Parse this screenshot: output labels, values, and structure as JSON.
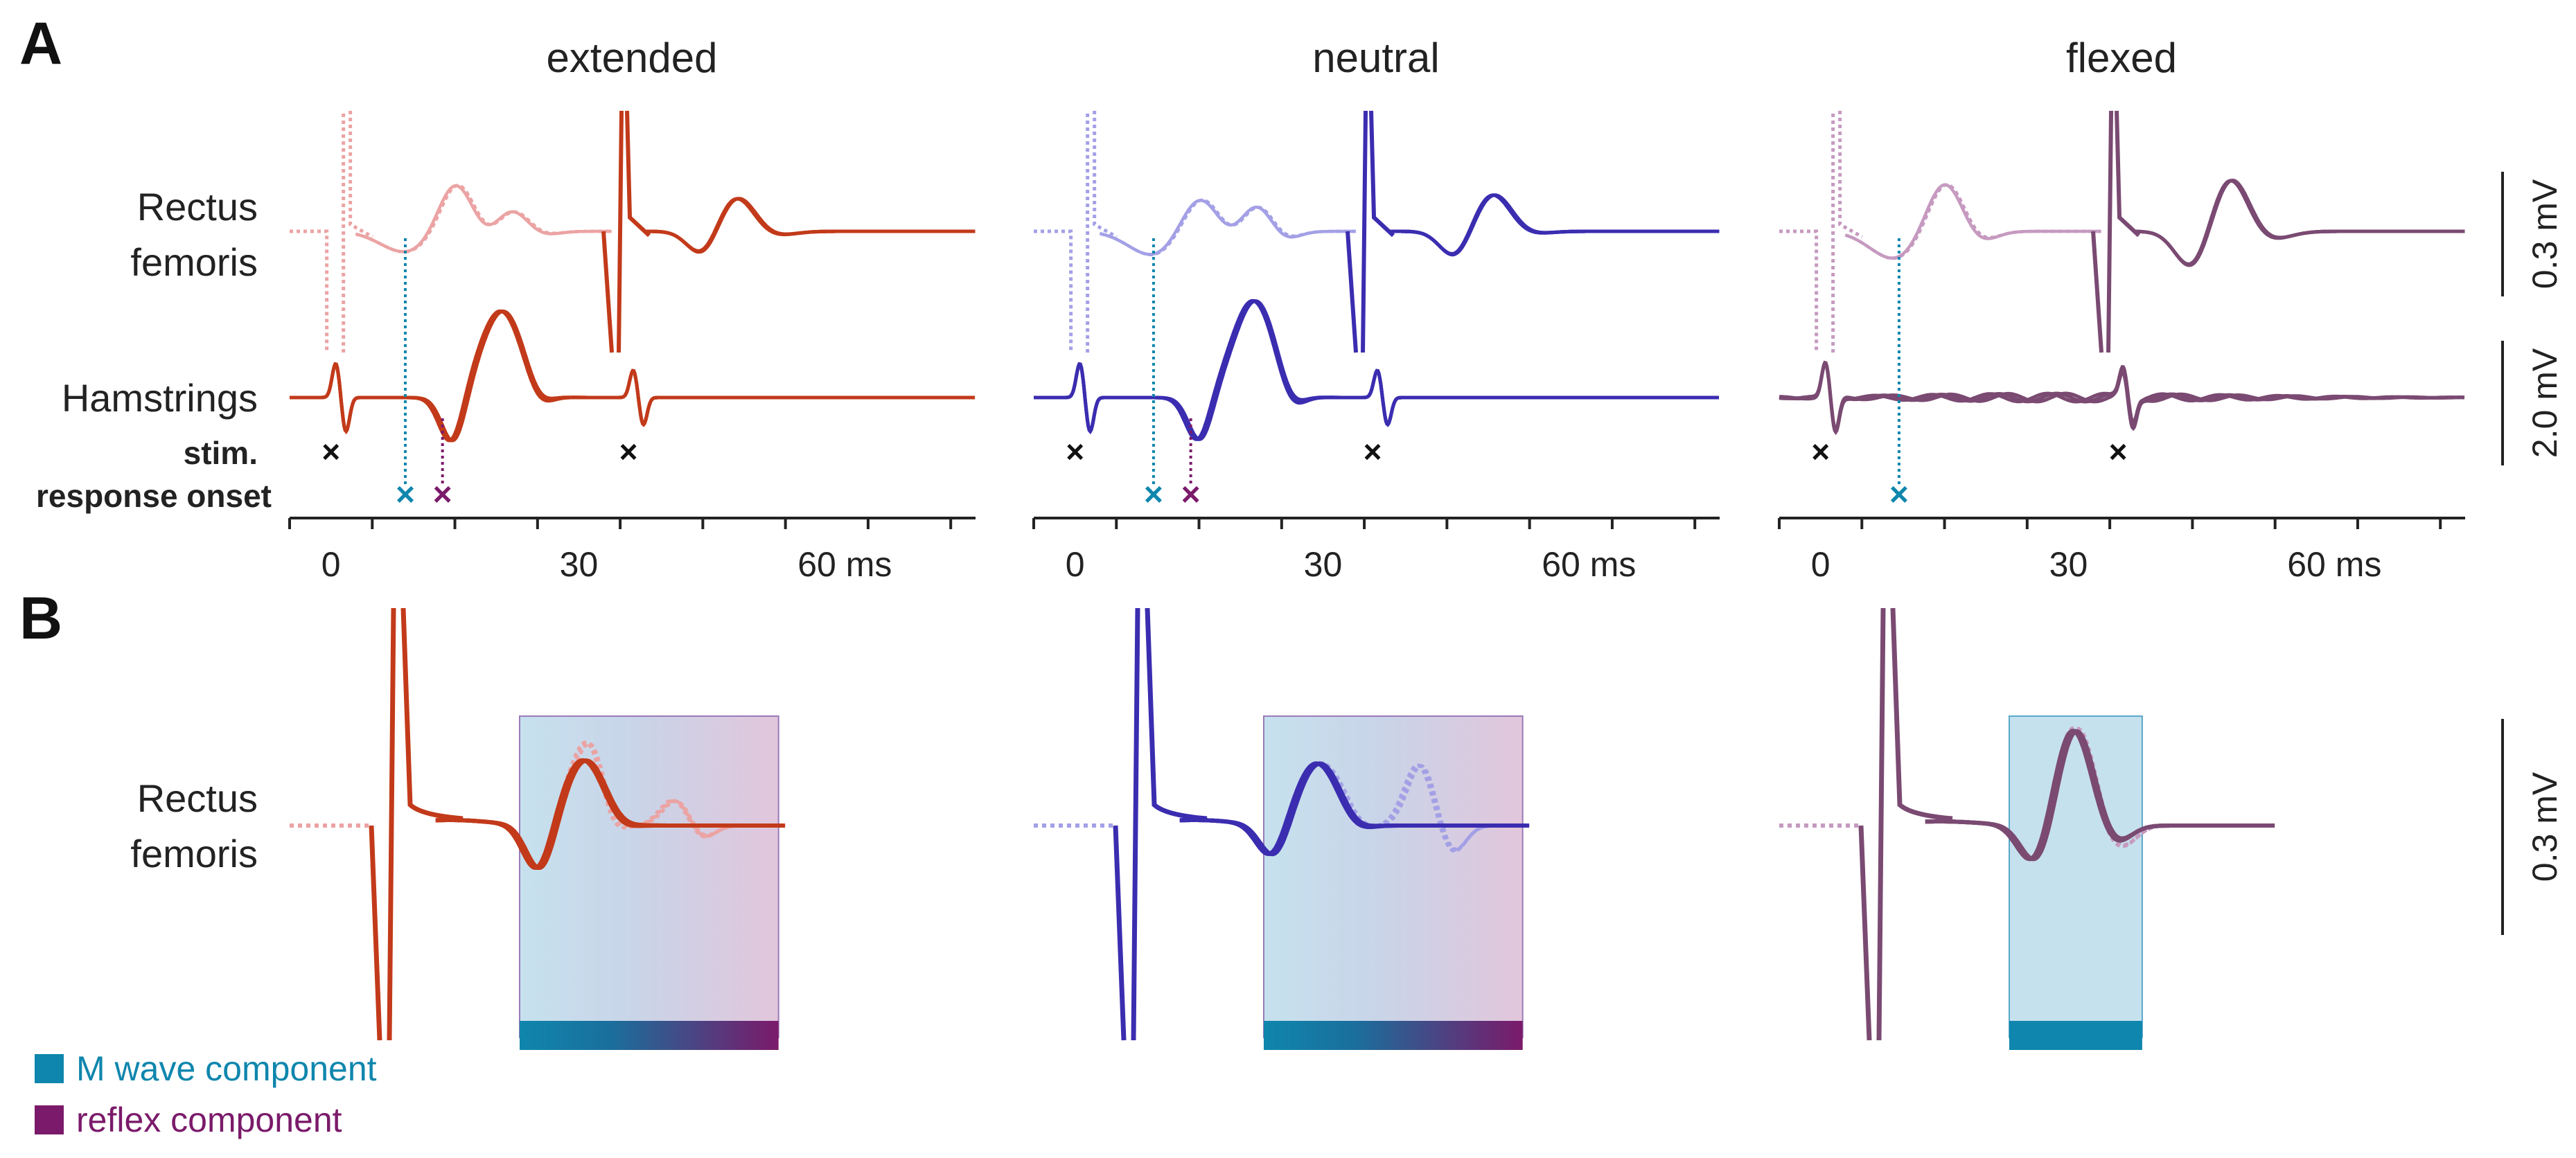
{
  "chart_data": {
    "type": "line",
    "panels": [
      {
        "label": "A",
        "conditions": [
          "extended",
          "neutral",
          "flexed"
        ],
        "rows": [
          "Rectus femoris",
          "Hamstrings"
        ],
        "row_lines": {
          "rectus": [
            "Rectus",
            "femoris"
          ],
          "hamstrings": [
            "Hamstrings"
          ]
        },
        "marker_labels": [
          "stim.",
          "response onset"
        ],
        "x_ticks": [
          "0",
          "30",
          "60 ms"
        ],
        "x_tick_values_ms": [
          0,
          30,
          60
        ],
        "x_range_ms": [
          -5,
          78
        ],
        "stim_times_ms": [
          0,
          36
        ],
        "response_onset_ms": {
          "extended": {
            "m_wave": 9,
            "reflex": 13.5
          },
          "neutral": {
            "m_wave": 9.5,
            "reflex": 14
          },
          "flexed": {
            "m_wave": 9.5
          }
        },
        "scale_bars": [
          "0.3 mV",
          "2.0 mV"
        ]
      },
      {
        "label": "B",
        "row": [
          "Rectus",
          "femoris"
        ],
        "scale_bar": "0.3 mV",
        "windows_ms": {
          "extended": [
            20,
            57
          ],
          "neutral": [
            20,
            57
          ],
          "flexed": [
            20,
            39
          ]
        }
      }
    ],
    "series_colors": {
      "extended": "#c23a1a",
      "neutral": "#3b2db0",
      "flexed": "#7a4a72",
      "extended_light": "#eba3a3",
      "neutral_light": "#a4a0e6",
      "flexed_light": "#c69ac0"
    },
    "legend": [
      {
        "label": "M wave component",
        "color": "#0f86ad"
      },
      {
        "label": "reflex component",
        "color": "#7b1a6a"
      }
    ]
  }
}
